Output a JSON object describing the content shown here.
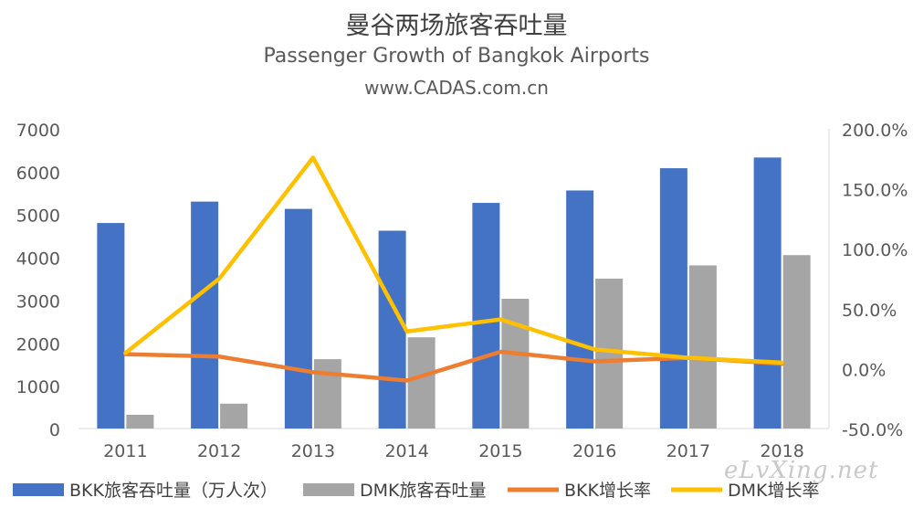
{
  "chart_data": {
    "type": "bar",
    "title": "曼谷两场旅客吞吐量",
    "subtitle": "Passenger Growth of Bangkok Airports",
    "source": "www.CADAS.com.cn",
    "categories": [
      "2011",
      "2012",
      "2013",
      "2014",
      "2015",
      "2016",
      "2017",
      "2018"
    ],
    "y_left": {
      "ticks": [
        "0",
        "1000",
        "2000",
        "3000",
        "4000",
        "5000",
        "6000",
        "7000"
      ],
      "range": [
        0,
        7000
      ]
    },
    "y_right": {
      "ticks": [
        "-50.0%",
        "0.0%",
        "50.0%",
        "100.0%",
        "150.0%",
        "200.0%"
      ],
      "range": [
        -50,
        200
      ]
    },
    "series": [
      {
        "name": "BKK旅客吞吐量（万人次）",
        "kind": "bar",
        "axis": "left",
        "color": "#4472c4",
        "values": [
          4800,
          5300,
          5130,
          4620,
          5270,
          5560,
          6080,
          6330
        ]
      },
      {
        "name": "DMK旅客吞吐量",
        "kind": "bar",
        "axis": "left",
        "color": "#a5a5a5",
        "values": [
          320,
          580,
          1620,
          2130,
          3030,
          3500,
          3810,
          4050
        ]
      },
      {
        "name": "BKK增长率",
        "kind": "line",
        "axis": "right",
        "color": "#ed7d31",
        "values": [
          12,
          10,
          -3,
          -10,
          14,
          6,
          9,
          4
        ]
      },
      {
        "name": "DMK增长率",
        "kind": "line",
        "axis": "right",
        "color": "#ffc000",
        "values": [
          13,
          75,
          176,
          31,
          41,
          16,
          9,
          5
        ]
      }
    ],
    "grid": false,
    "legend_position": "bottom"
  },
  "watermark": "eLvXing.net"
}
